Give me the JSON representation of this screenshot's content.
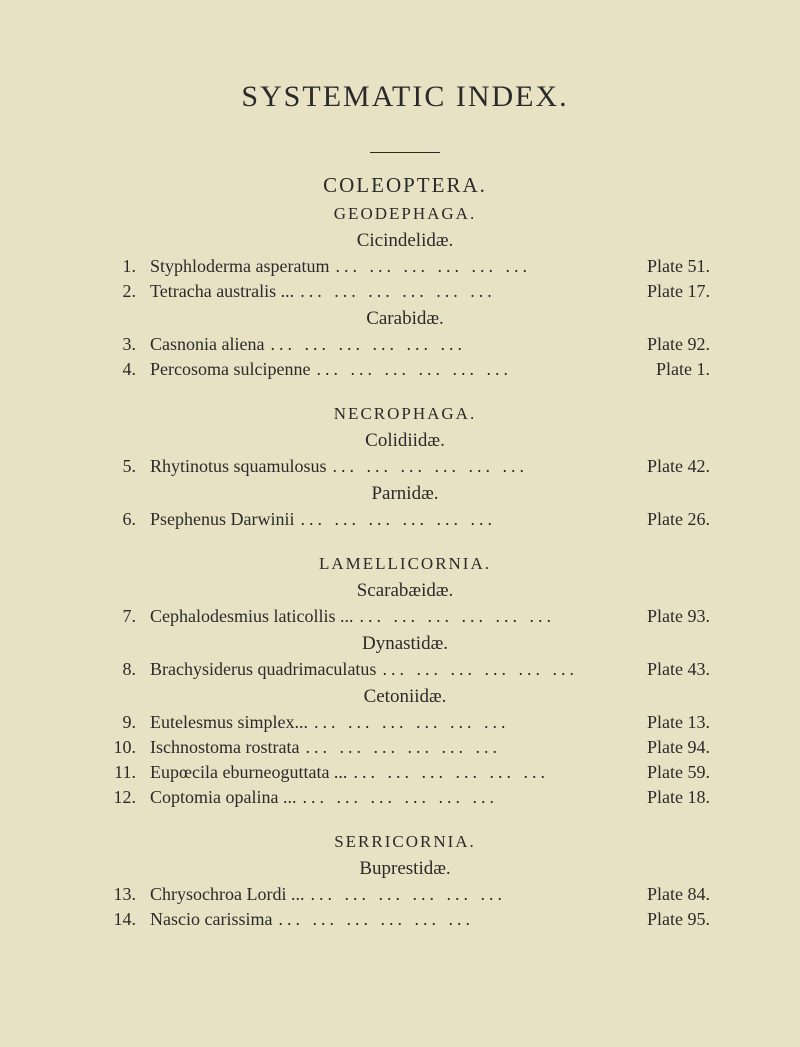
{
  "main_title": "SYSTEMATIC INDEX.",
  "dots": "...   ...   ...   ...   ...   ...",
  "sections": [
    {
      "order": "COLEOPTERA.",
      "suborders": [
        {
          "name": "GEODEPHAGA.",
          "families": [
            {
              "name": "Cicindelidæ.",
              "entries": [
                {
                  "num": "1.",
                  "name": "Styphloderma asperatum",
                  "plate": "Plate 51."
                },
                {
                  "num": "2.",
                  "name": "Tetracha australis ...",
                  "plate": "Plate 17."
                }
              ]
            },
            {
              "name": "Carabidæ.",
              "entries": [
                {
                  "num": "3.",
                  "name": "Casnonia aliena",
                  "plate": "Plate 92."
                },
                {
                  "num": "4.",
                  "name": "Percosoma sulcipenne",
                  "plate": "Plate 1."
                }
              ]
            }
          ]
        },
        {
          "name": "NECROPHAGA.",
          "families": [
            {
              "name": "Colidiidæ.",
              "entries": [
                {
                  "num": "5.",
                  "name": "Rhytinotus squamulosus",
                  "plate": "Plate 42."
                }
              ]
            },
            {
              "name": "Parnidæ.",
              "entries": [
                {
                  "num": "6.",
                  "name": "Psephenus Darwinii",
                  "plate": "Plate 26."
                }
              ]
            }
          ]
        },
        {
          "name": "LAMELLICORNIA.",
          "families": [
            {
              "name": "Scarabæidæ.",
              "entries": [
                {
                  "num": "7.",
                  "name": "Cephalodesmius laticollis ...",
                  "plate": "Plate 93."
                }
              ]
            },
            {
              "name": "Dynastidæ.",
              "entries": [
                {
                  "num": "8.",
                  "name": "Brachysiderus quadrimaculatus",
                  "plate": "Plate 43."
                }
              ]
            },
            {
              "name": "Cetoniidæ.",
              "entries": [
                {
                  "num": "9.",
                  "name": "Eutelesmus simplex...",
                  "plate": "Plate 13."
                },
                {
                  "num": "10.",
                  "name": "Ischnostoma rostrata",
                  "plate": "Plate 94."
                },
                {
                  "num": "11.",
                  "name": "Eupœcila eburneoguttata ...",
                  "plate": "Plate 59."
                },
                {
                  "num": "12.",
                  "name": "Coptomia opalina ...",
                  "plate": "Plate 18."
                }
              ]
            }
          ]
        },
        {
          "name": "SERRICORNIA.",
          "families": [
            {
              "name": "Buprestidæ.",
              "entries": [
                {
                  "num": "13.",
                  "name": "Chrysochroa Lordi ...",
                  "plate": "Plate 84."
                },
                {
                  "num": "14.",
                  "name": "Nascio carissima",
                  "plate": "Plate 95."
                }
              ]
            }
          ]
        }
      ]
    }
  ]
}
